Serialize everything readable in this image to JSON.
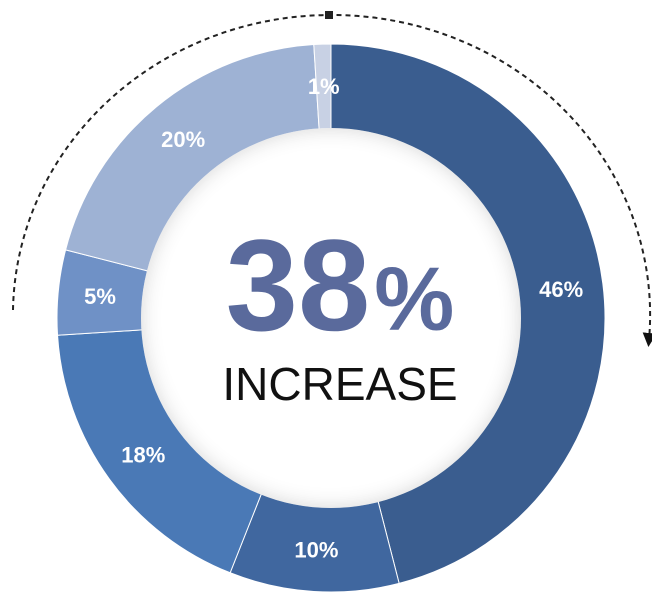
{
  "chart_data": {
    "type": "pie",
    "variant": "donut",
    "start_angle_deg": 0,
    "direction": "clockwise",
    "slices": [
      {
        "value": 46,
        "label": "46%",
        "color": "#3a5d8f"
      },
      {
        "value": 10,
        "label": "10%",
        "color": "#40679f"
      },
      {
        "value": 18,
        "label": "18%",
        "color": "#4a79b6"
      },
      {
        "value": 5,
        "label": "5%",
        "color": "#6f91c6"
      },
      {
        "value": 20,
        "label": "20%",
        "color": "#9eb2d4"
      },
      {
        "value": 1,
        "label": "1%",
        "color": "#c8d1e4"
      }
    ],
    "center_value": "38",
    "center_unit": "%",
    "center_text": "INCREASE",
    "center_value_color": "#5a6a9c",
    "arrow": {
      "style": "dashed",
      "direction": "clockwise"
    }
  }
}
